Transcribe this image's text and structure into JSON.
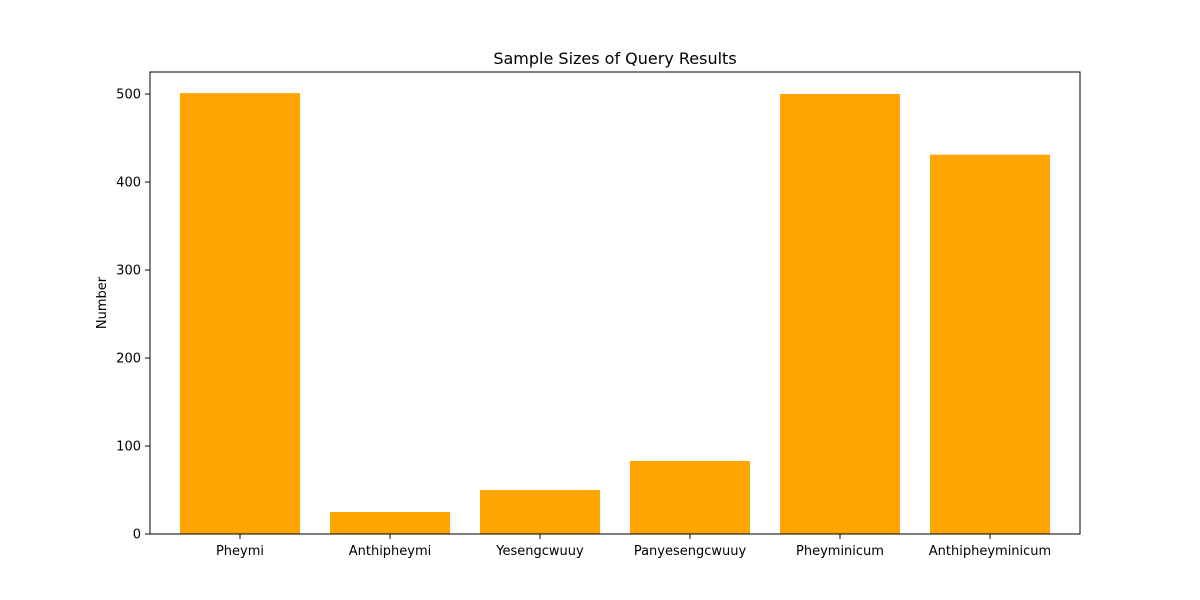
{
  "chart_data": {
    "type": "bar",
    "title": "Sample Sizes of Query Results",
    "xlabel": "",
    "ylabel": "Number",
    "categories": [
      "Pheymi",
      "Anthipheymi",
      "Yesengcwuuy",
      "Panyesengcwuuy",
      "Pheyminicum",
      "Anthipheyminicum"
    ],
    "values": [
      501,
      25,
      50,
      83,
      500,
      431
    ],
    "ylim": [
      0,
      525
    ],
    "yticks": [
      0,
      100,
      200,
      300,
      400,
      500
    ],
    "bar_color": "#ffa500",
    "grid": false,
    "legend": "none"
  }
}
